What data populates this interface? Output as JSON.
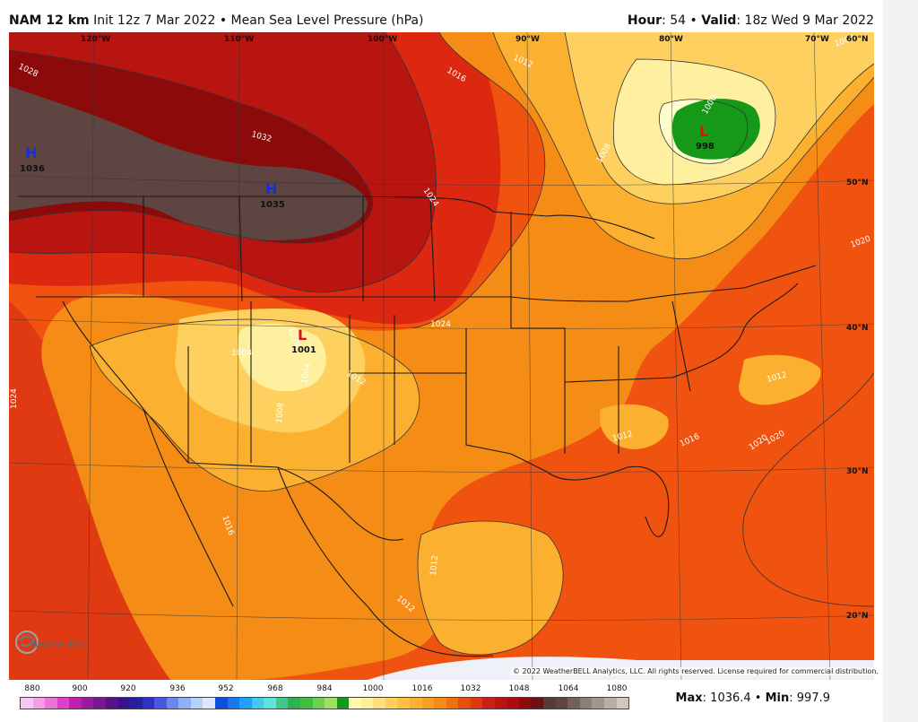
{
  "header": {
    "model": "NAM 12 km",
    "init": "Init 12z 7 Mar 2022",
    "separator": "•",
    "field": "Mean Sea Level Pressure (hPa)",
    "hour_label": "Hour",
    "hour_value": ": 54",
    "valid_label": "Valid",
    "valid_value": ": 18z Wed 9 Mar 2022"
  },
  "map": {
    "longitudes": [
      "120°W",
      "110°W",
      "100°W",
      "90°W",
      "80°W",
      "70°W"
    ],
    "latitudes": [
      "60°N",
      "50°N",
      "40°N",
      "30°N",
      "20°N"
    ],
    "isobar_labels": [
      "1028",
      "1032",
      "1024",
      "1016",
      "1012",
      "1008",
      "1004",
      "1000",
      "1020",
      "1024",
      "1020",
      "1024",
      "1028",
      "1008",
      "1004",
      "1008",
      "1012",
      "1016",
      "1012",
      "1020",
      "1016",
      "1012",
      "1012",
      "1004"
    ],
    "systems": [
      {
        "type": "H",
        "value": "1036"
      },
      {
        "type": "H",
        "value": "1035"
      },
      {
        "type": "L",
        "value": "1001"
      },
      {
        "type": "L",
        "value": "998"
      }
    ],
    "copyright": "© 2022 WeatherBELL Analytics, LLC. All rights reserved. License required for commercial distribution.",
    "logo_text": "WeatherBELL"
  },
  "colorbar": {
    "ticks": [
      "880",
      "900",
      "920",
      "936",
      "952",
      "968",
      "984",
      "1000",
      "1016",
      "1032",
      "1048",
      "1064",
      "1080"
    ],
    "colors": [
      "#f7c6f0",
      "#f49ee6",
      "#ee70d8",
      "#e040c8",
      "#c020b0",
      "#9a1a9c",
      "#7a1490",
      "#5c1088",
      "#3a1090",
      "#2020a0",
      "#3030c8",
      "#4a58e0",
      "#6a88f0",
      "#90b0f8",
      "#b8d0fc",
      "#dde8fe",
      "#1050d8",
      "#1878f0",
      "#20a0f8",
      "#40c8f0",
      "#60e0d8",
      "#40c890",
      "#30b050",
      "#40c040",
      "#70d050",
      "#a0e060",
      "#169818",
      "#fffcb0",
      "#ffef9a",
      "#ffe080",
      "#ffd060",
      "#ffc040",
      "#fbb030",
      "#f8a020",
      "#f58c15",
      "#f26f10",
      "#e85010",
      "#dc3812",
      "#cc2010",
      "#b81410",
      "#a80c0c",
      "#8c0a0a",
      "#6e1010",
      "#5a3a36",
      "#5e4541",
      "#706060",
      "#888070",
      "#a09888",
      "#b8b0a0",
      "#d0c8b8"
    ]
  },
  "stats": {
    "max_label": "Max",
    "max_value": ": 1036.4",
    "sep": "•",
    "min_label": "Min",
    "min_value": ": 997.9"
  },
  "palette": {
    "c1036": "#5e4541",
    "c1032": "#8c0a0a",
    "c1028": "#b81410",
    "c1024": "#dc2810",
    "c1020": "#f0520f",
    "c1016": "#f58c15",
    "c1012": "#fbb030",
    "c1008": "#fdd060",
    "c1004": "#fff0a0",
    "c1000": "#fffccc",
    "c998": "#169818"
  }
}
